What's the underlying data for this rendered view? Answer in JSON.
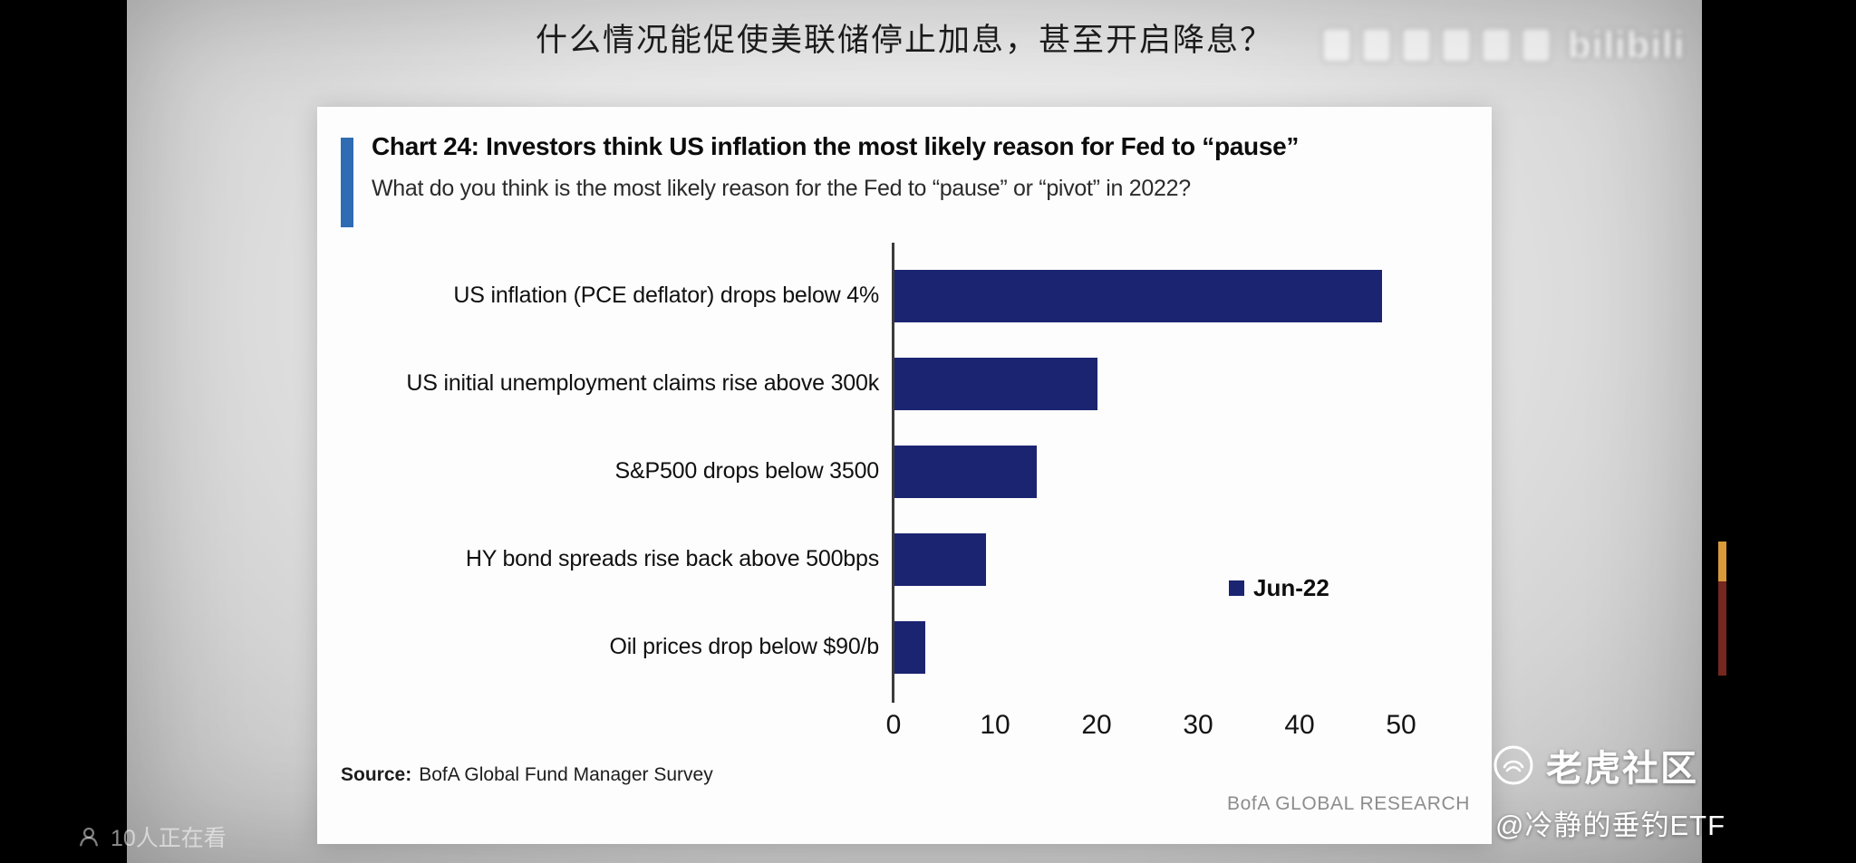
{
  "page_title": "什么情况能促使美联储停止加息，甚至开启降息？",
  "watermark": {
    "platform": "bilibili"
  },
  "viewers": {
    "count_text": "10人正在看"
  },
  "channel": {
    "name": "老虎社区",
    "handle": "@冷静的垂钓ETF"
  },
  "chart_data": {
    "type": "bar",
    "orientation": "horizontal",
    "title": "Chart 24: Investors think US inflation the most likely reason for Fed to “pause”",
    "subtitle": "What do you think is the most likely reason for the Fed to “pause” or “pivot” in 2022?",
    "categories": [
      "US inflation (PCE deflator) drops below 4%",
      "US initial unemployment claims rise above 300k",
      "S&P500 drops below 3500",
      "HY bond spreads rise back above 500bps",
      "Oil prices drop below $90/b"
    ],
    "values": [
      48,
      20,
      14,
      9,
      3
    ],
    "legend": [
      {
        "name": "Jun-22",
        "color": "#1b2470"
      }
    ],
    "x_ticks": [
      0,
      10,
      20,
      30,
      40,
      50
    ],
    "xlim": [
      0,
      56
    ],
    "grid": false,
    "bar_color": "#1b2470",
    "accent_color": "#2f6cb3",
    "source_label": "Source:",
    "source_text": "BofA Global Fund Manager Survey",
    "credit": "BofA GLOBAL RESEARCH"
  }
}
